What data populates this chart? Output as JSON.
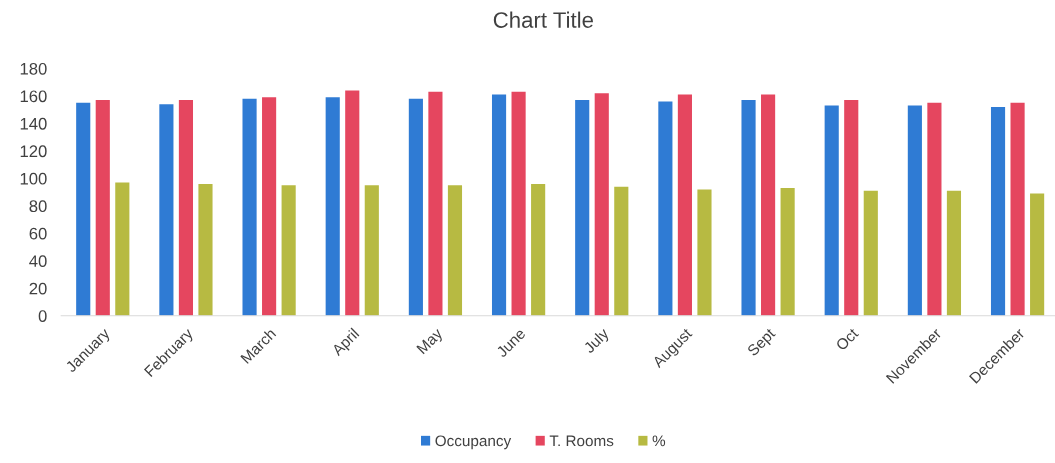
{
  "chart_data": {
    "type": "bar",
    "title": "Chart Title",
    "categories": [
      "January",
      "February",
      "March",
      "April",
      "May",
      "June",
      "July",
      "August",
      "Sept",
      "Oct",
      "November",
      "December"
    ],
    "series": [
      {
        "name": "Occupancy",
        "color": "#2f7bd4",
        "values": [
          155,
          154,
          158,
          159,
          158,
          161,
          157,
          156,
          157,
          153,
          153,
          152
        ]
      },
      {
        "name": "T. Rooms",
        "color": "#e5465f",
        "values": [
          157,
          157,
          159,
          164,
          163,
          163,
          162,
          161,
          161,
          157,
          155,
          155
        ]
      },
      {
        "name": "%",
        "color": "#b7ba42",
        "values": [
          97,
          96,
          95,
          95,
          95,
          96,
          94,
          92,
          93,
          91,
          91,
          89
        ]
      }
    ],
    "ylim": [
      0,
      180
    ],
    "yticks": [
      0,
      20,
      40,
      60,
      80,
      100,
      120,
      140,
      160,
      180
    ],
    "grid": false,
    "legend": "bottom"
  }
}
